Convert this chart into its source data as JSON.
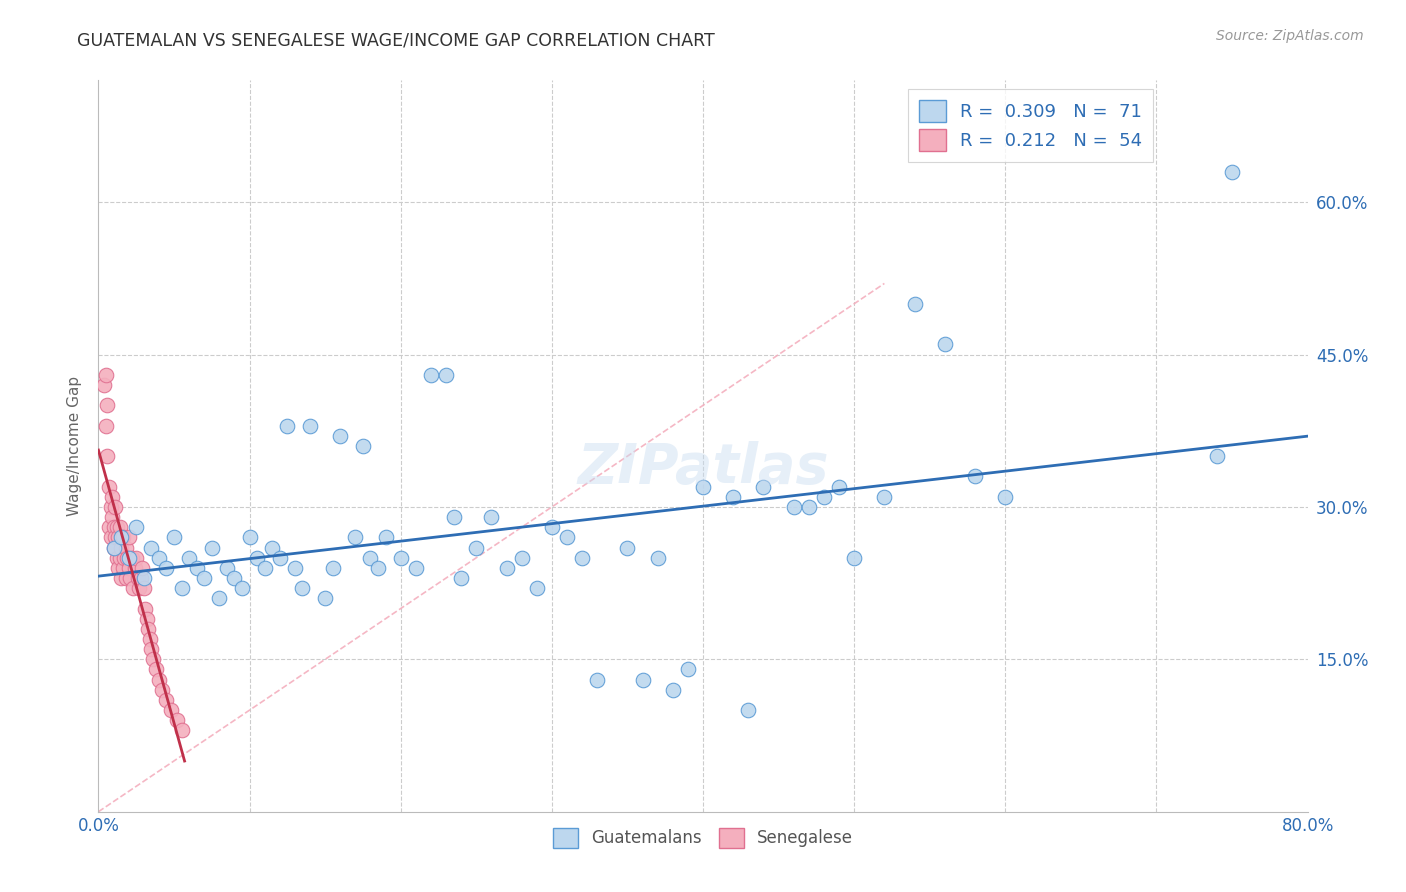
{
  "title": "GUATEMALAN VS SENEGALESE WAGE/INCOME GAP CORRELATION CHART",
  "source": "Source: ZipAtlas.com",
  "ylabel": "Wage/Income Gap",
  "xmin": 0.0,
  "xmax": 0.8,
  "ymin": 0.0,
  "ymax": 0.72,
  "yticks": [
    0.15,
    0.3,
    0.45,
    0.6
  ],
  "ytick_labels": [
    "15.0%",
    "30.0%",
    "45.0%",
    "60.0%"
  ],
  "xticks": [
    0.0,
    0.1,
    0.2,
    0.3,
    0.4,
    0.5,
    0.6,
    0.7,
    0.8
  ],
  "xtick_labels": [
    "0.0%",
    "",
    "",
    "",
    "",
    "",
    "",
    "",
    "80.0%"
  ],
  "blue_fill": "#BDD7EE",
  "pink_fill": "#F4AFBE",
  "blue_edge": "#5B9BD5",
  "pink_edge": "#E07090",
  "blue_line_color": "#2E6DB4",
  "pink_line_color": "#C0304A",
  "diag_line_color": "#F4AFBE",
  "legend_blue_r": "0.309",
  "legend_blue_n": "71",
  "legend_pink_r": "0.212",
  "legend_pink_n": "54",
  "watermark": "ZIPatlas",
  "blue_x": [
    0.01,
    0.015,
    0.02,
    0.025,
    0.03,
    0.035,
    0.04,
    0.045,
    0.05,
    0.055,
    0.06,
    0.065,
    0.07,
    0.075,
    0.08,
    0.085,
    0.09,
    0.095,
    0.1,
    0.105,
    0.11,
    0.115,
    0.12,
    0.125,
    0.13,
    0.135,
    0.14,
    0.15,
    0.155,
    0.16,
    0.17,
    0.175,
    0.18,
    0.185,
    0.19,
    0.2,
    0.21,
    0.22,
    0.23,
    0.235,
    0.24,
    0.25,
    0.26,
    0.27,
    0.28,
    0.29,
    0.3,
    0.31,
    0.32,
    0.33,
    0.35,
    0.36,
    0.37,
    0.38,
    0.39,
    0.4,
    0.42,
    0.43,
    0.44,
    0.46,
    0.47,
    0.48,
    0.49,
    0.5,
    0.52,
    0.54,
    0.56,
    0.58,
    0.6,
    0.74,
    0.75
  ],
  "blue_y": [
    0.26,
    0.27,
    0.25,
    0.28,
    0.23,
    0.26,
    0.25,
    0.24,
    0.27,
    0.22,
    0.25,
    0.24,
    0.23,
    0.26,
    0.21,
    0.24,
    0.23,
    0.22,
    0.27,
    0.25,
    0.24,
    0.26,
    0.25,
    0.38,
    0.24,
    0.22,
    0.38,
    0.21,
    0.24,
    0.37,
    0.27,
    0.36,
    0.25,
    0.24,
    0.27,
    0.25,
    0.24,
    0.43,
    0.43,
    0.29,
    0.23,
    0.26,
    0.29,
    0.24,
    0.25,
    0.22,
    0.28,
    0.27,
    0.25,
    0.13,
    0.26,
    0.13,
    0.25,
    0.12,
    0.14,
    0.32,
    0.31,
    0.1,
    0.32,
    0.3,
    0.3,
    0.31,
    0.32,
    0.25,
    0.31,
    0.5,
    0.46,
    0.33,
    0.31,
    0.35,
    0.63
  ],
  "pink_x": [
    0.004,
    0.005,
    0.005,
    0.006,
    0.006,
    0.007,
    0.007,
    0.008,
    0.008,
    0.009,
    0.009,
    0.01,
    0.01,
    0.011,
    0.011,
    0.012,
    0.012,
    0.013,
    0.013,
    0.014,
    0.014,
    0.015,
    0.015,
    0.016,
    0.016,
    0.017,
    0.018,
    0.018,
    0.019,
    0.02,
    0.02,
    0.021,
    0.022,
    0.023,
    0.024,
    0.025,
    0.026,
    0.027,
    0.028,
    0.029,
    0.03,
    0.031,
    0.032,
    0.033,
    0.034,
    0.035,
    0.036,
    0.038,
    0.04,
    0.042,
    0.045,
    0.048,
    0.052,
    0.055
  ],
  "pink_y": [
    0.42,
    0.43,
    0.38,
    0.4,
    0.35,
    0.32,
    0.28,
    0.3,
    0.27,
    0.31,
    0.29,
    0.28,
    0.26,
    0.27,
    0.3,
    0.25,
    0.28,
    0.24,
    0.27,
    0.25,
    0.28,
    0.23,
    0.26,
    0.24,
    0.27,
    0.25,
    0.23,
    0.26,
    0.25,
    0.27,
    0.24,
    0.23,
    0.25,
    0.22,
    0.24,
    0.25,
    0.23,
    0.22,
    0.23,
    0.24,
    0.22,
    0.2,
    0.19,
    0.18,
    0.17,
    0.16,
    0.15,
    0.14,
    0.13,
    0.12,
    0.11,
    0.1,
    0.09,
    0.08
  ]
}
